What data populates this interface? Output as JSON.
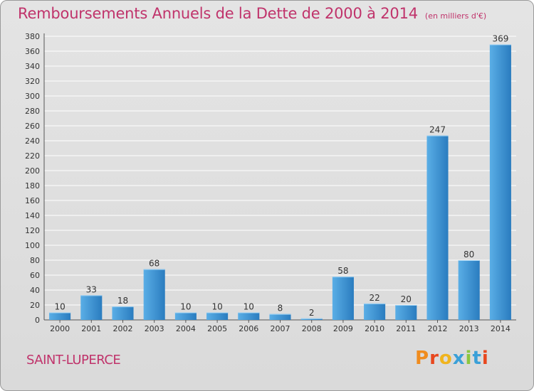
{
  "header": {
    "title": "Remboursements Annuels de la Dette de 2000 à 2014",
    "unit": "(en milliers d'€)"
  },
  "footer": {
    "commune": "SAINT-LUPERCE",
    "logo_text": "Proxiti"
  },
  "colors": {
    "title": "#c0336b",
    "bar_light": "#5aaee6",
    "bar_dark": "#2a7cbf",
    "grid": "#ffffff",
    "background": "#e0e0e0",
    "logo_letters": [
      "#f08c1e",
      "#e8471e",
      "#f0b41e",
      "#3aa0d8",
      "#8cc63e",
      "#3aa0d8",
      "#e8471e"
    ]
  },
  "chart_data": {
    "type": "bar",
    "title": "Remboursements Annuels de la Dette de 2000 à 2014",
    "subtitle": "(en milliers d'€)",
    "xlabel": "",
    "ylabel": "",
    "categories": [
      "2000",
      "2001",
      "2002",
      "2003",
      "2004",
      "2005",
      "2006",
      "2007",
      "2008",
      "2009",
      "2010",
      "2011",
      "2012",
      "2013",
      "2014"
    ],
    "values": [
      10,
      33,
      18,
      68,
      10,
      10,
      10,
      8,
      2,
      58,
      22,
      20,
      247,
      80,
      369
    ],
    "ylim": [
      0,
      380
    ],
    "yticks": [
      0,
      20,
      40,
      60,
      80,
      100,
      120,
      140,
      160,
      180,
      200,
      220,
      240,
      260,
      280,
      300,
      320,
      340,
      360,
      380
    ],
    "grid": true,
    "legend": "none"
  }
}
